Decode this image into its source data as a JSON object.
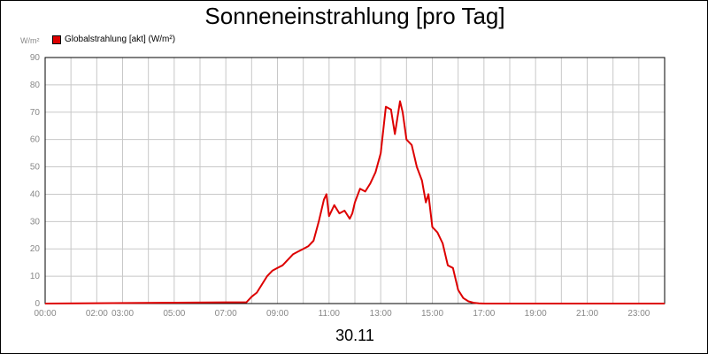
{
  "title": "Sonneneinstrahlung [pro Tag]",
  "unit_label": "W/m²",
  "footer_label": "30.11",
  "colors": {
    "series": "#dd0000",
    "grid": "#c8c8c8",
    "axis": "#000000",
    "ticks": "#888888"
  },
  "chart_data": {
    "type": "line",
    "title": "Sonneneinstrahlung [pro Tag]",
    "xlabel": "30.11",
    "ylabel": "W/m²",
    "ylim": [
      0,
      90
    ],
    "xlim_hours": [
      0,
      24
    ],
    "grid": true,
    "legend_position": "top-left",
    "yticks": [
      0,
      10,
      20,
      30,
      40,
      50,
      60,
      70,
      80,
      90
    ],
    "xtick_labels": [
      {
        "hour": 0,
        "label": "00:00"
      },
      {
        "hour": 2,
        "label": "02:00"
      },
      {
        "hour": 3,
        "label": "03:00"
      },
      {
        "hour": 5,
        "label": "05:00"
      },
      {
        "hour": 7,
        "label": "07:00"
      },
      {
        "hour": 9,
        "label": "09:00"
      },
      {
        "hour": 11,
        "label": "11:00"
      },
      {
        "hour": 13,
        "label": "13:00"
      },
      {
        "hour": 15,
        "label": "15:00"
      },
      {
        "hour": 17,
        "label": "17:00"
      },
      {
        "hour": 19,
        "label": "19:00"
      },
      {
        "hour": 21,
        "label": "21:00"
      },
      {
        "hour": 23,
        "label": "23:00"
      }
    ],
    "series": [
      {
        "name": "Globalstrahlung [akt] (W/m²)",
        "x": [
          0,
          7.8,
          8.0,
          8.2,
          8.4,
          8.6,
          8.8,
          9.0,
          9.2,
          9.4,
          9.6,
          9.8,
          10.0,
          10.2,
          10.4,
          10.6,
          10.8,
          10.9,
          11.0,
          11.2,
          11.4,
          11.6,
          11.8,
          11.9,
          12.0,
          12.2,
          12.4,
          12.6,
          12.8,
          13.0,
          13.2,
          13.4,
          13.55,
          13.75,
          13.85,
          14.0,
          14.2,
          14.4,
          14.6,
          14.75,
          14.85,
          15.0,
          15.2,
          15.4,
          15.6,
          15.8,
          16.0,
          16.2,
          16.4,
          16.6,
          16.8,
          17.0,
          24
        ],
        "values": [
          0,
          0.5,
          2.5,
          4,
          7,
          10,
          12,
          13,
          14,
          16,
          18,
          19,
          20,
          21,
          23,
          30,
          38,
          40,
          32,
          36,
          33,
          34,
          31,
          33,
          37,
          42,
          41,
          44,
          48,
          55,
          72,
          71,
          62,
          74,
          70,
          60,
          58,
          50,
          45,
          37,
          40,
          28,
          26,
          22,
          14,
          13,
          5,
          2,
          0.8,
          0.3,
          0.1,
          0,
          0
        ]
      }
    ]
  }
}
